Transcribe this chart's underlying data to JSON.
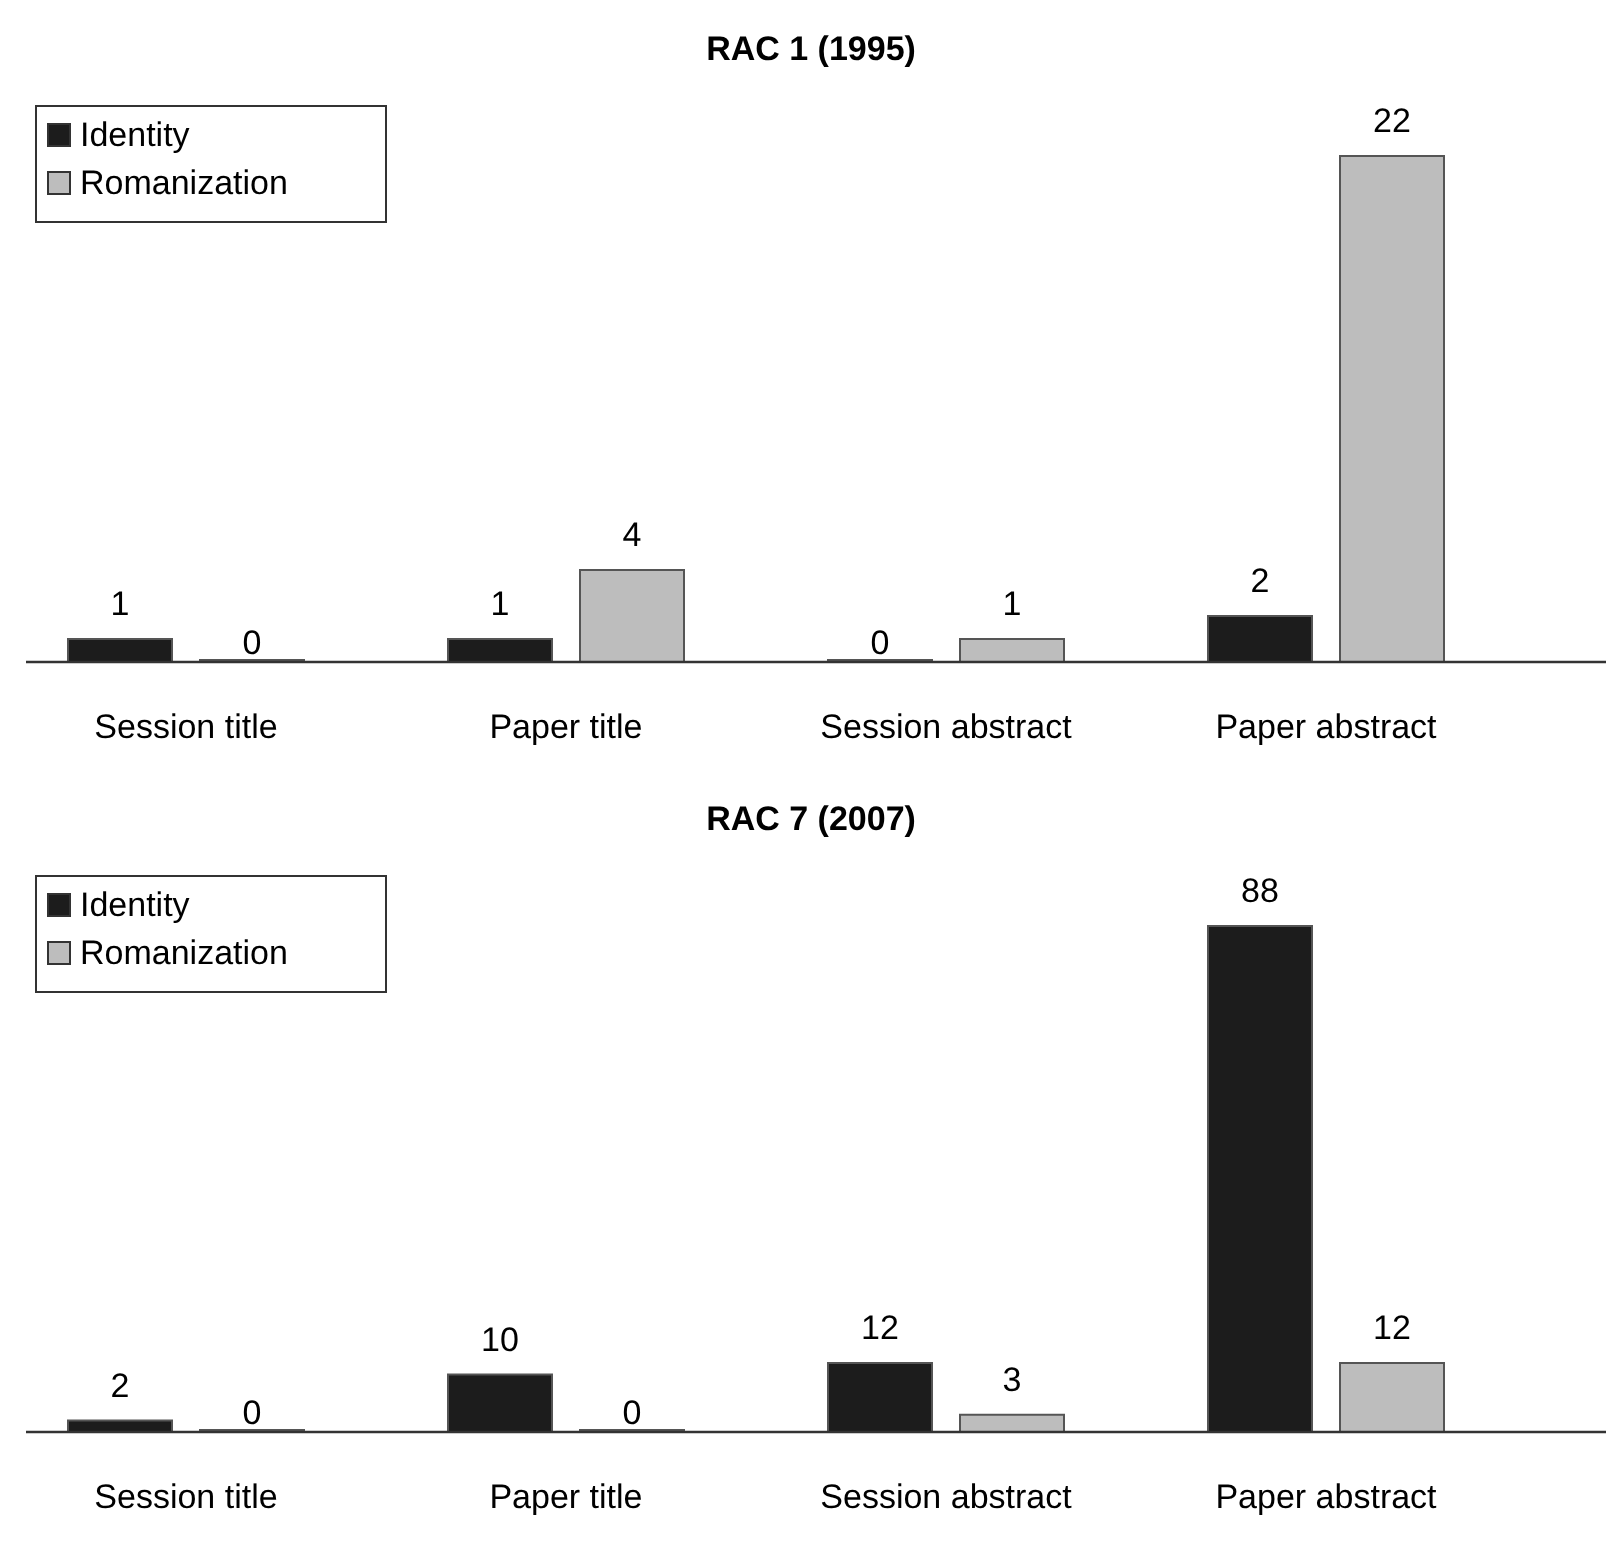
{
  "chart_data": [
    {
      "type": "bar",
      "title": "RAC 1 (1995)",
      "categories": [
        "Session title",
        "Paper title",
        "Session abstract",
        "Paper abstract"
      ],
      "series": [
        {
          "name": "Identity",
          "color": "#1c1c1c",
          "values": [
            1,
            1,
            0,
            2
          ]
        },
        {
          "name": "Romanization",
          "color": "#bdbdbd",
          "values": [
            0,
            4,
            1,
            22
          ]
        }
      ],
      "data_labels": true,
      "legend": "top left"
    },
    {
      "type": "bar",
      "title": "RAC 7 (2007)",
      "categories": [
        "Session title",
        "Paper title",
        "Session abstract",
        "Paper abstract"
      ],
      "series": [
        {
          "name": "Identity",
          "color": "#1c1c1c",
          "values": [
            2,
            10,
            12,
            88
          ]
        },
        {
          "name": "Romanization",
          "color": "#bdbdbd",
          "values": [
            0,
            0,
            3,
            12
          ]
        }
      ],
      "data_labels": true,
      "legend": "top left"
    }
  ]
}
